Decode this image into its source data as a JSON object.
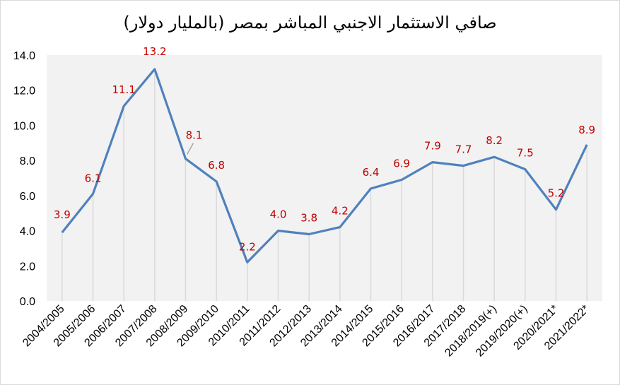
{
  "colors": {
    "line": "#4F81BD",
    "label": "#C00000",
    "plot_bg": "#F2F2F2",
    "drop": "#D9D9D9"
  },
  "chart_data": {
    "type": "line",
    "title": "صافي الاستثمار الاجنبي المباشر بمصر (بالمليار دولار)",
    "categories": [
      "2004/2005",
      "2005/2006",
      "2006/2007",
      "2007/2008",
      "2008/2009",
      "2009/2010",
      "2010/2011",
      "2011/2012",
      "2012/2013",
      "2013/2014",
      "2014/2015",
      "2015/2016",
      "2016/2017",
      "2017/2018",
      "2018/2019(+)",
      "2019/2020(+)",
      "2020/2021*",
      "2021/2022*"
    ],
    "values": [
      3.9,
      6.1,
      11.1,
      13.2,
      8.1,
      6.8,
      2.2,
      4.0,
      3.8,
      4.2,
      6.4,
      6.9,
      7.9,
      7.7,
      8.2,
      7.5,
      5.2,
      8.9
    ],
    "data_labels": [
      "3.9",
      "6.1",
      "11.1",
      "13.2",
      "8.1",
      "6.8",
      "2.2",
      "4.0",
      "3.8",
      "4.2",
      "6.4",
      "6.9",
      "7.9",
      "7.7",
      "8.2",
      "7.5",
      "5.2",
      "8.9"
    ],
    "yticks": [
      "0.0",
      "2.0",
      "4.0",
      "6.0",
      "8.0",
      "10.0",
      "12.0",
      "14.0"
    ],
    "ylim": [
      0,
      14
    ],
    "grid": false,
    "legend": "none"
  }
}
